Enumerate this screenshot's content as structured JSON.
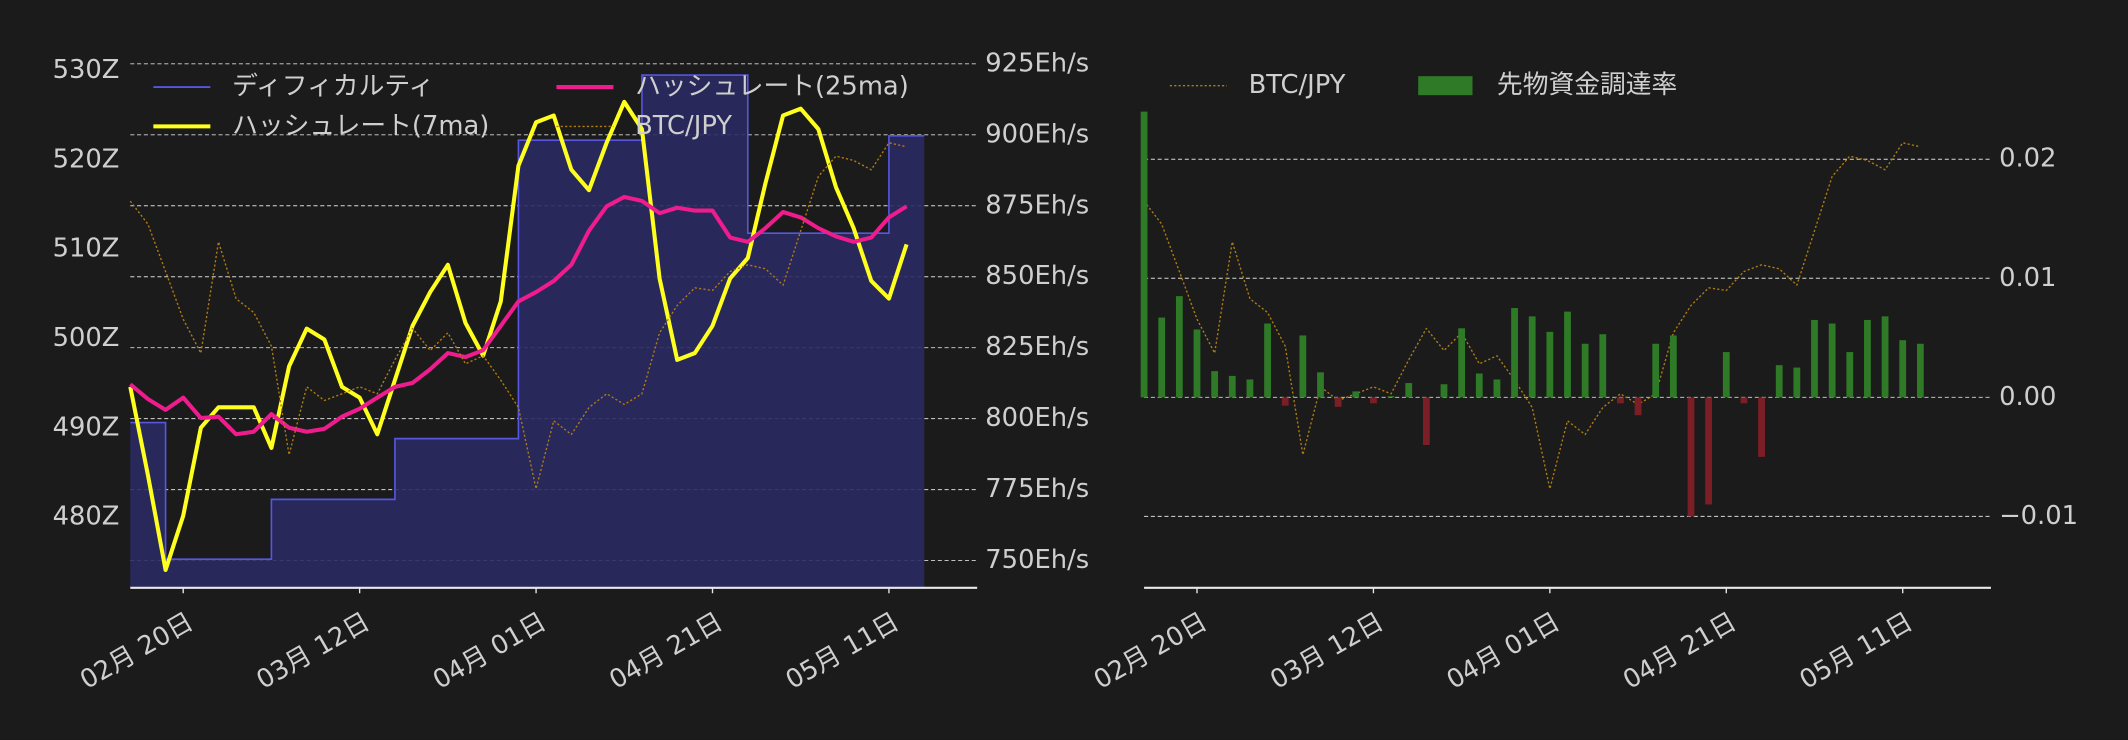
{
  "chart_data": [
    {
      "type": "line",
      "x": [
        "02-14",
        "02-16",
        "02-18",
        "02-20",
        "02-22",
        "02-24",
        "02-26",
        "02-28",
        "03-02",
        "03-04",
        "03-06",
        "03-08",
        "03-10",
        "03-12",
        "03-14",
        "03-16",
        "03-18",
        "03-20",
        "03-22",
        "03-24",
        "03-26",
        "03-28",
        "03-30",
        "04-01",
        "04-03",
        "04-05",
        "04-07",
        "04-09",
        "04-11",
        "04-13",
        "04-15",
        "04-17",
        "04-19",
        "04-21",
        "04-23",
        "04-25",
        "04-27",
        "04-29",
        "05-01",
        "05-03",
        "05-05",
        "05-07",
        "05-09",
        "05-11",
        "05-13"
      ],
      "xticks": [
        {
          "value": "02-20",
          "label": "02月 20日"
        },
        {
          "value": "03-12",
          "label": "03月 12日"
        },
        {
          "value": "04-01",
          "label": "04月 01日"
        },
        {
          "value": "04-21",
          "label": "04月 21日"
        },
        {
          "value": "05-11",
          "label": "05月 11日"
        }
      ],
      "ylim": [
        472.1,
        531.8
      ],
      "yticks": [
        {
          "value": 480,
          "label": "480Z"
        },
        {
          "value": 490,
          "label": "490Z"
        },
        {
          "value": 500,
          "label": "500Z"
        },
        {
          "value": 510,
          "label": "510Z"
        },
        {
          "value": 520,
          "label": "520Z"
        },
        {
          "value": 530,
          "label": "530Z"
        }
      ],
      "y2lim": [
        740.4,
        928.3
      ],
      "y2ticks": [
        {
          "value": 750,
          "label": "750Eh/s"
        },
        {
          "value": 775,
          "label": "775Eh/s"
        },
        {
          "value": 800,
          "label": "800Eh/s"
        },
        {
          "value": 825,
          "label": "825Eh/s"
        },
        {
          "value": 850,
          "label": "850Eh/s"
        },
        {
          "value": 875,
          "label": "875Eh/s"
        },
        {
          "value": 900,
          "label": "900Eh/s"
        },
        {
          "value": 925,
          "label": "925Eh/s"
        }
      ],
      "y3lim": [
        2600000,
        4200000
      ],
      "grid": true,
      "grid_axis": "y2",
      "legend": "upper left",
      "series": [
        {
          "name": "ディフィカルティ",
          "type": "step-area",
          "axis": "y",
          "color": "#5656e0",
          "fill": "#2a2a62",
          "linewidth": 1.2,
          "values": [
            490.6,
            490.6,
            475.3,
            475.3,
            475.3,
            475.3,
            475.3,
            475.3,
            482.0,
            482.0,
            482.0,
            482.0,
            482.0,
            482.0,
            482.0,
            488.8,
            488.8,
            488.8,
            488.8,
            488.8,
            488.8,
            488.8,
            522.2,
            522.2,
            522.2,
            522.2,
            522.2,
            522.2,
            522.2,
            529.5,
            529.5,
            529.5,
            529.5,
            529.5,
            529.5,
            511.8,
            511.8,
            511.8,
            511.8,
            511.8,
            511.8,
            511.8,
            511.8,
            522.7,
            522.7
          ]
        },
        {
          "name": "ハッシュレート(7ma)",
          "type": "line",
          "axis": "y2",
          "color": "#ffff1f",
          "linewidth": 3,
          "values": [
            811.2,
            780.1,
            746.7,
            765.8,
            796.8,
            804.0,
            804.0,
            804.0,
            789.7,
            818.4,
            831.7,
            827.9,
            811.2,
            807.4,
            794.5,
            813.6,
            832.7,
            844.6,
            854.2,
            833.7,
            822.2,
            841.3,
            889.1,
            904.4,
            906.8,
            887.7,
            880.5,
            897.2,
            911.6,
            902.0,
            849.4,
            820.7,
            823.1,
            832.7,
            849.4,
            856.6,
            882.9,
            906.8,
            909.2,
            902.0,
            881.5,
            867.1,
            848.5,
            842.3,
            861.4
          ]
        },
        {
          "name": "ハッシュレート(25ma)",
          "type": "line",
          "axis": "y2",
          "color": "#ee1c8c",
          "linewidth": 3,
          "values": [
            812.1,
            806.9,
            803.1,
            807.4,
            800.2,
            800.7,
            794.5,
            795.4,
            801.6,
            796.8,
            795.4,
            796.4,
            800.7,
            803.5,
            807.4,
            811.2,
            812.6,
            817.4,
            823.1,
            821.7,
            824.1,
            832.7,
            841.3,
            844.6,
            848.5,
            854.2,
            866.2,
            874.8,
            878.1,
            876.7,
            872.4,
            874.3,
            873.3,
            873.3,
            863.8,
            862.3,
            867.1,
            872.8,
            870.9,
            867.1,
            864.2,
            862.3,
            863.8,
            870.9,
            874.8
          ]
        },
        {
          "name": "BTC/JPY",
          "type": "line",
          "axis": "y3",
          "color": "#b07c10",
          "linewidth": 1,
          "linestyle": "dotted",
          "values": [
            3760000,
            3691000,
            3549000,
            3406000,
            3304000,
            3638000,
            3467000,
            3426000,
            3325000,
            2999000,
            3203000,
            3162000,
            3182000,
            3203000,
            3182000,
            3284000,
            3378000,
            3312000,
            3365000,
            3272000,
            3296000,
            3223000,
            3141000,
            2897000,
            3101000,
            3060000,
            3141000,
            3182000,
            3150000,
            3182000,
            3365000,
            3447000,
            3500000,
            3492000,
            3549000,
            3569000,
            3557000,
            3508000,
            3671000,
            3834000,
            3895000,
            3882000,
            3854000,
            3935000,
            3923000
          ]
        }
      ]
    },
    {
      "type": "bar",
      "x": [
        "02-14",
        "02-16",
        "02-18",
        "02-20",
        "02-22",
        "02-24",
        "02-26",
        "02-28",
        "03-02",
        "03-04",
        "03-06",
        "03-08",
        "03-10",
        "03-12",
        "03-14",
        "03-16",
        "03-18",
        "03-20",
        "03-22",
        "03-24",
        "03-26",
        "03-28",
        "03-30",
        "04-01",
        "04-03",
        "04-05",
        "04-07",
        "04-09",
        "04-11",
        "04-13",
        "04-15",
        "04-17",
        "04-19",
        "04-21",
        "04-23",
        "04-25",
        "04-27",
        "04-29",
        "05-01",
        "05-03",
        "05-05",
        "05-07",
        "05-09",
        "05-11",
        "05-13"
      ],
      "xticks": [
        {
          "value": "02-20",
          "label": "02月 20日"
        },
        {
          "value": "03-12",
          "label": "03月 12日"
        },
        {
          "value": "04-01",
          "label": "04月 01日"
        },
        {
          "value": "04-21",
          "label": "04月 21日"
        },
        {
          "value": "05-11",
          "label": "05月 11日"
        }
      ],
      "ylim": [
        2600000,
        4200000
      ],
      "y2lim": [
        -0.016,
        0.0288
      ],
      "y2ticks": [
        {
          "value": -0.01,
          "label": "−0.01"
        },
        {
          "value": 0,
          "label": "0.00"
        },
        0.01,
        0.02
      ],
      "grid": true,
      "grid_axis": "y2",
      "legend": "upper left",
      "series": [
        {
          "name": "BTC/JPY",
          "type": "line",
          "axis": "y",
          "color": "#b07c10",
          "linewidth": 1,
          "linestyle": "dotted",
          "values": [
            3760000,
            3691000,
            3549000,
            3406000,
            3304000,
            3638000,
            3467000,
            3426000,
            3325000,
            2999000,
            3203000,
            3162000,
            3182000,
            3203000,
            3182000,
            3284000,
            3378000,
            3312000,
            3365000,
            3272000,
            3296000,
            3223000,
            3141000,
            2897000,
            3101000,
            3060000,
            3141000,
            3182000,
            3150000,
            3182000,
            3365000,
            3447000,
            3500000,
            3492000,
            3549000,
            3569000,
            3557000,
            3508000,
            3671000,
            3834000,
            3895000,
            3882000,
            3854000,
            3935000,
            3923000
          ]
        },
        {
          "name": "先物資金調達率",
          "type": "bar",
          "axis": "y2",
          "color": "#2f7a27",
          "negative_color": "#7c1e25",
          "values": [
            0.024,
            0.0067,
            0.0085,
            0.0057,
            0.0022,
            0.0018,
            0.0015,
            0.0062,
            -0.0007,
            0.0052,
            0.0021,
            -0.0008,
            0.0005,
            -0.0005,
            0.0001,
            0.0012,
            -0.004,
            0.0011,
            0.0058,
            0.002,
            0.0015,
            0.0075,
            0.0068,
            0.0055,
            0.0072,
            0.0045,
            0.0053,
            -0.0005,
            -0.0015,
            0.0045,
            0.0052,
            -0.01,
            -0.009,
            0.0038,
            -0.0005,
            -0.005,
            0.0027,
            0.0025,
            0.0065,
            0.0062,
            0.0038,
            0.0065,
            0.0068,
            0.0048,
            0.0045
          ]
        }
      ]
    }
  ]
}
